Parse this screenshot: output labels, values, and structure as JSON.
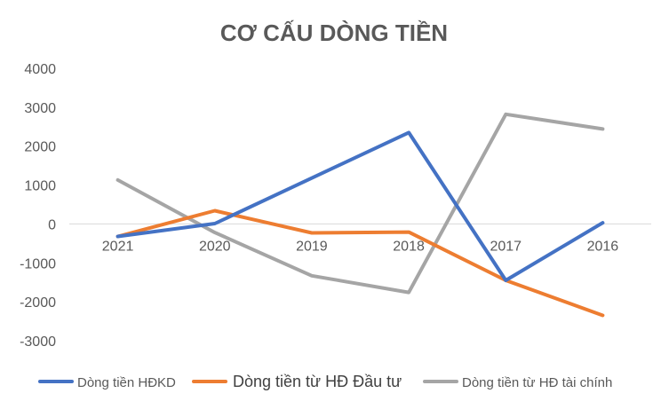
{
  "chart_data": {
    "type": "line",
    "title": "CƠ CẤU DÒNG TIỀN",
    "categories": [
      "2021",
      "2020",
      "2019",
      "2018",
      "2017",
      "2016"
    ],
    "ylim": [
      -3000,
      4000
    ],
    "yticks": [
      4000,
      3000,
      2000,
      1000,
      0,
      -1000,
      -2000,
      -3000
    ],
    "grid": false,
    "legend": "bottom",
    "series": [
      {
        "name": "Dòng tiền HĐKD",
        "color": "#4472c4",
        "values": [
          -320,
          10,
          1180,
          2350,
          -1450,
          30
        ]
      },
      {
        "name": "Dòng tiền từ HĐ Đầu tư",
        "color": "#ed7d31",
        "values": [
          -320,
          340,
          -230,
          -210,
          -1450,
          -2350
        ]
      },
      {
        "name": "Dòng tiền từ HĐ tài chính",
        "color": "#a5a5a5",
        "values": [
          1130,
          -220,
          -1330,
          -1760,
          2820,
          2440
        ]
      }
    ]
  }
}
